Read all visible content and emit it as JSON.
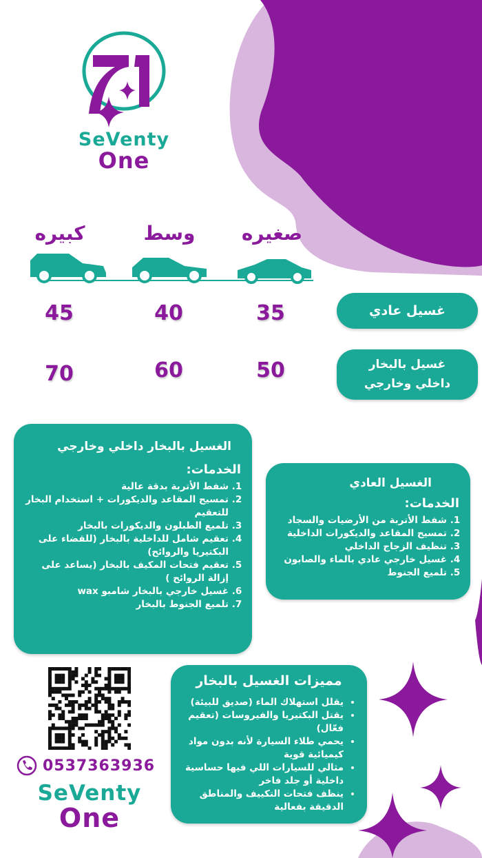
{
  "brand": {
    "line1": "SeVenty",
    "line2": "One",
    "mark": "71"
  },
  "colors": {
    "purple": "#8a1a9b",
    "teal": "#1aa996",
    "lilac": "#d8b6de"
  },
  "sizes": [
    "صغيره",
    "وسط",
    "كبيره"
  ],
  "rows": [
    {
      "label": "غسيل عادي",
      "prices": [
        "35",
        "40",
        "45"
      ]
    },
    {
      "label_line1": "غسيل بالبخار",
      "label_line2": "داخلي وخارجي",
      "prices": [
        "50",
        "60",
        "70"
      ]
    }
  ],
  "steam_card": {
    "title": "الغسيل بالبخار داخلي وخارجي",
    "subtitle": "الخدمات:",
    "items": [
      "شفط الأتربة بدقة عالية",
      "تمسيح المقاعد والديكورات + استخدام البخار للتعقيم",
      "تلميع الطبلون والديكورات بالبخار",
      "تعقيم شامل للداخلية بالبخار (للقضاء على البكتيريا والروائح)",
      "تعقيم فتحات المكيف بالبخار (يساعد على إزالة الروائح )",
      "غسيل خارجي بالبخار شامبو wax",
      "تلميع الجنوط بالبخار"
    ]
  },
  "regular_card": {
    "title": "الغسيل العادي",
    "subtitle": "الخدمات:",
    "items": [
      "شفط الأتربة من الأرضيات والسجاد",
      "تمسيح المقاعد والديكورات الداخلية",
      "تنظيف الزجاج الداخلي",
      "غسيل خارجي عادي بالماء والصابون",
      "تلميع الجنوط"
    ]
  },
  "features_card": {
    "title": "مميزات الغسيل بالبخار",
    "items": [
      "يقلل استهلاك الماء (صديق للبيئة)",
      "يقتل البكتيريا والفيروسات (تعقيم فعّال)",
      "يحمي طلاء السيارة لأنه بدون مواد كيميائية قوية",
      "مثالي للسيارات اللي فيها حساسية داخلية أو جلد فاخر",
      "ينظف فتحات التكييف والمناطق الدقيقة بفعالية"
    ]
  },
  "contact": {
    "phone": "0537363936",
    "icon": "phone-icon",
    "qr": "qr-code"
  }
}
